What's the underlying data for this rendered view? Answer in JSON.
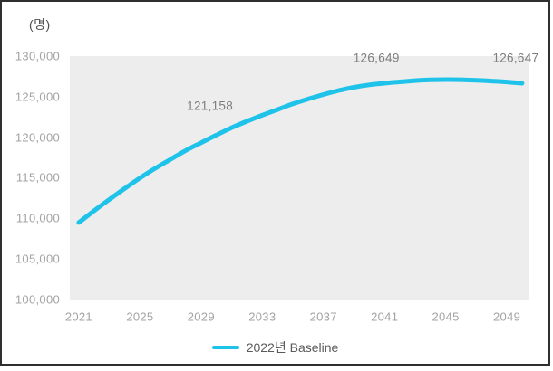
{
  "window": {
    "background": "#ffffff",
    "border_color": "#2f2f2f"
  },
  "chart_data": {
    "type": "line",
    "title": "",
    "unit_label": "(명)",
    "xlabel": "",
    "ylabel": "(명)",
    "xlim": [
      2021,
      2050
    ],
    "ylim": [
      100000,
      130000
    ],
    "grid": false,
    "plot_background": "#ededed",
    "x": [
      2021,
      2022,
      2023,
      2024,
      2025,
      2026,
      2027,
      2028,
      2029,
      2030,
      2031,
      2032,
      2033,
      2034,
      2035,
      2036,
      2037,
      2038,
      2039,
      2040,
      2041,
      2042,
      2043,
      2044,
      2045,
      2046,
      2047,
      2048,
      2049,
      2050
    ],
    "series": [
      {
        "name": "2022년 Baseline",
        "color": "#1fc3ea",
        "values": [
          109450,
          110900,
          112300,
          113650,
          114950,
          116150,
          117250,
          118350,
          119300,
          120250,
          121158,
          121950,
          122700,
          123400,
          124100,
          124700,
          125250,
          125750,
          126150,
          126450,
          126649,
          126820,
          126970,
          127060,
          127100,
          127080,
          127010,
          126920,
          126800,
          126647
        ]
      }
    ],
    "y_ticks": [
      {
        "value": 130000,
        "label": "130,000"
      },
      {
        "value": 125000,
        "label": "125,000"
      },
      {
        "value": 120000,
        "label": "120,000"
      },
      {
        "value": 115000,
        "label": "115,000"
      },
      {
        "value": 110000,
        "label": "110,000"
      },
      {
        "value": 105000,
        "label": "105,000"
      },
      {
        "value": 100000,
        "label": "100,000"
      }
    ],
    "x_ticks": [
      {
        "value": 2021,
        "label": "2021"
      },
      {
        "value": 2025,
        "label": "2025"
      },
      {
        "value": 2029,
        "label": "2029"
      },
      {
        "value": 2033,
        "label": "2033"
      },
      {
        "value": 2037,
        "label": "2037"
      },
      {
        "value": 2041,
        "label": "2041"
      },
      {
        "value": 2045,
        "label": "2045"
      },
      {
        "value": 2049,
        "label": "2049"
      }
    ],
    "labeled_points": [
      {
        "year": 2031,
        "value": 121158,
        "label": "121,158"
      },
      {
        "year": 2041,
        "value": 126649,
        "label": "126,649"
      },
      {
        "year": 2050,
        "value": 126647,
        "label": "126,647"
      }
    ],
    "legend": {
      "position": "bottom-center",
      "entries": [
        {
          "label": "2022년 Baseline",
          "color": "#1fc3ea"
        }
      ]
    }
  }
}
